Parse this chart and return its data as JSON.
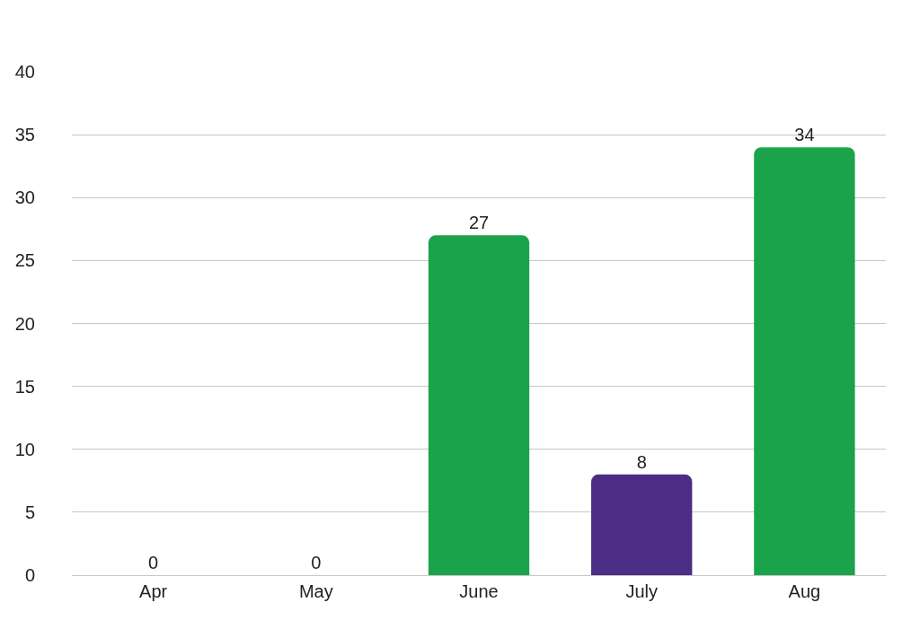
{
  "chart_data": {
    "type": "bar",
    "categories": [
      "Apr",
      "May",
      "June",
      "July",
      "Aug"
    ],
    "values": [
      0,
      0,
      27,
      8,
      34
    ],
    "colors": [
      "#1aa34a",
      "#1aa34a",
      "#1aa34a",
      "#4b2d83",
      "#1aa34a"
    ],
    "ylim": [
      0,
      40
    ],
    "yticks": [
      0,
      5,
      10,
      15,
      20,
      25,
      30,
      35,
      40
    ],
    "grid": "y",
    "data_labels": true
  }
}
